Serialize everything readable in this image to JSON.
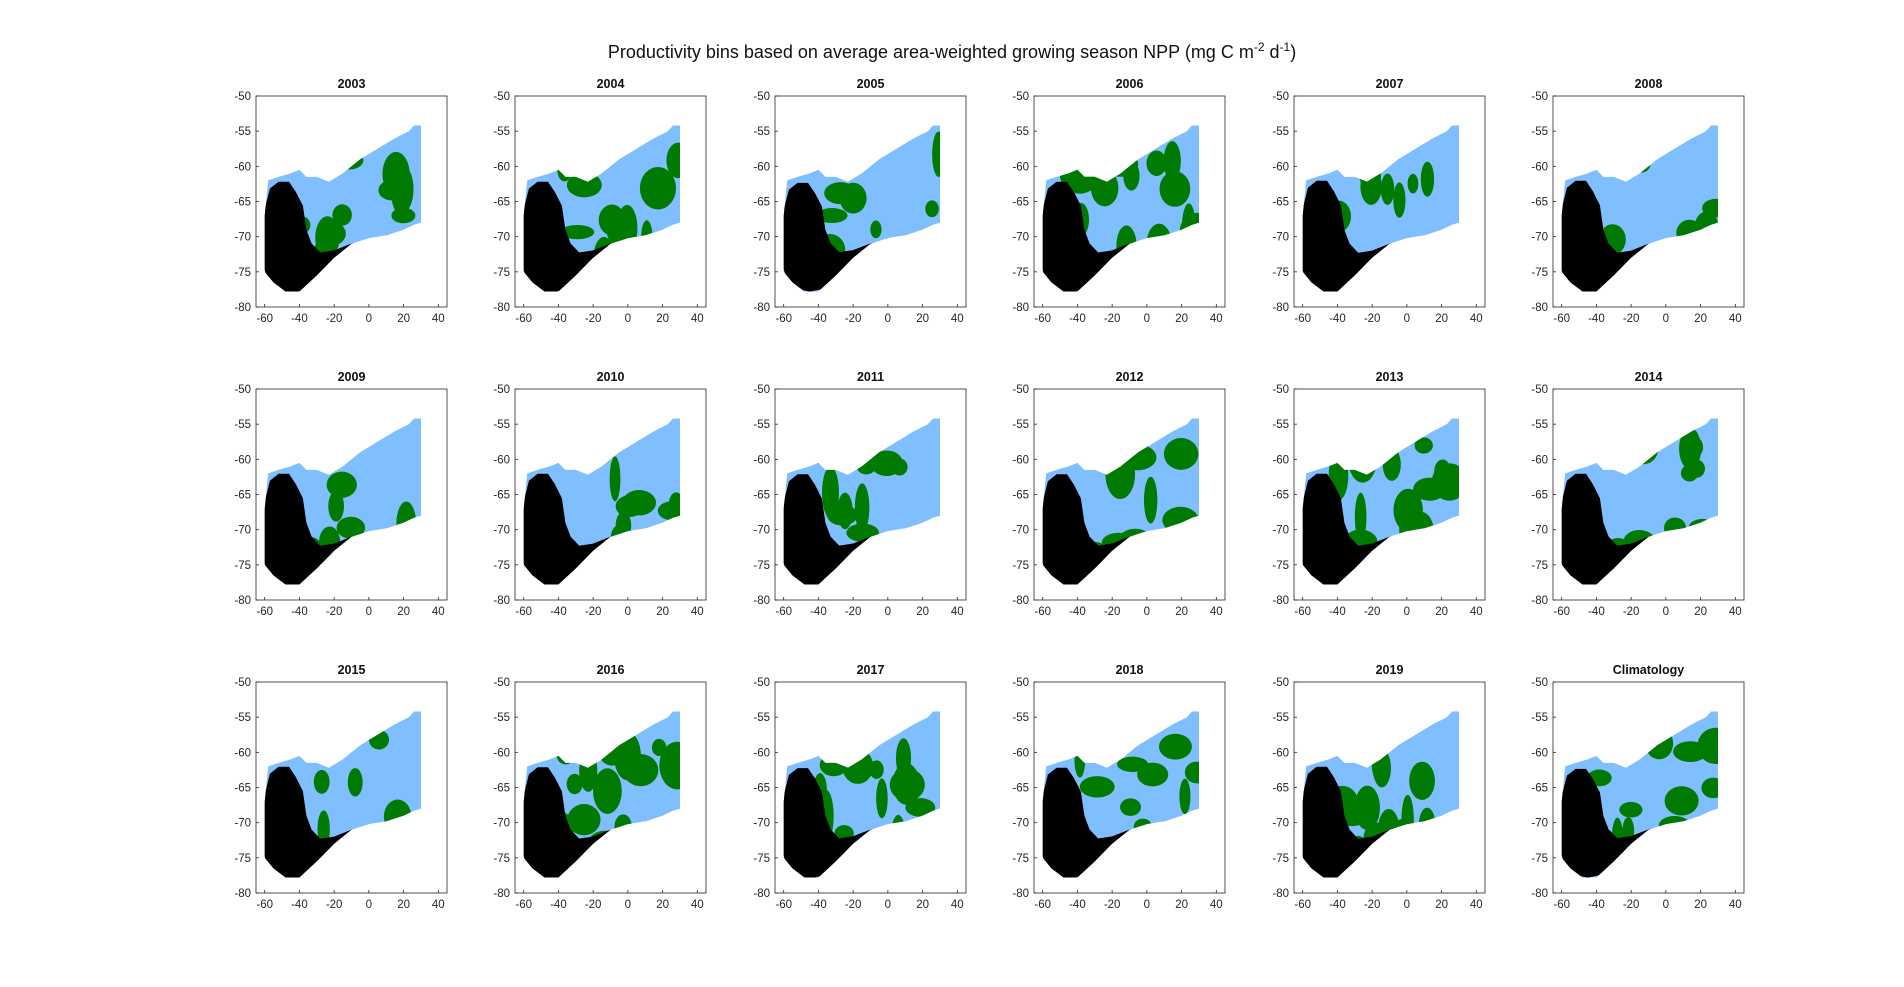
{
  "title": {
    "main": "Productivity bins based on average area-weighted growing season NPP (mg C m",
    "exp1": "-2",
    "mid": " d",
    "exp2": "-1",
    "end": ")"
  },
  "colors": {
    "low": "#000000",
    "medium": "#80bfff",
    "high": "#007a00",
    "axis": "#262626"
  },
  "chart_data": {
    "type": "map-grid",
    "xlim": [
      -65,
      45
    ],
    "ylim": [
      -80,
      -50
    ],
    "xticks": [
      -60,
      -40,
      -20,
      0,
      20,
      40
    ],
    "yticks": [
      -50,
      -55,
      -60,
      -65,
      -70,
      -75,
      -80
    ],
    "panels": [
      {
        "title": "2003",
        "black": 0.85,
        "green": 0.3
      },
      {
        "title": "2004",
        "black": 0.85,
        "green": 0.35
      },
      {
        "title": "2005",
        "black": 0.7,
        "green": 0.3
      },
      {
        "title": "2006",
        "black": 0.85,
        "green": 0.45
      },
      {
        "title": "2007",
        "black": 0.95,
        "green": 0.08
      },
      {
        "title": "2008",
        "black": 0.95,
        "green": 0.1
      },
      {
        "title": "2009",
        "black": 0.95,
        "green": 0.25
      },
      {
        "title": "2010",
        "black": 0.95,
        "green": 0.3
      },
      {
        "title": "2011",
        "black": 0.9,
        "green": 0.4
      },
      {
        "title": "2012",
        "black": 0.9,
        "green": 0.4
      },
      {
        "title": "2013",
        "black": 0.95,
        "green": 0.35
      },
      {
        "title": "2014",
        "black": 0.95,
        "green": 0.25
      },
      {
        "title": "2015",
        "black": 0.95,
        "green": 0.2
      },
      {
        "title": "2016",
        "black": 0.9,
        "green": 0.4
      },
      {
        "title": "2017",
        "black": 0.8,
        "green": 0.4
      },
      {
        "title": "2018",
        "black": 0.85,
        "green": 0.35
      },
      {
        "title": "2019",
        "black": 0.95,
        "green": 0.35
      },
      {
        "title": "Climatology",
        "black": 0.7,
        "green": 0.4
      }
    ]
  }
}
